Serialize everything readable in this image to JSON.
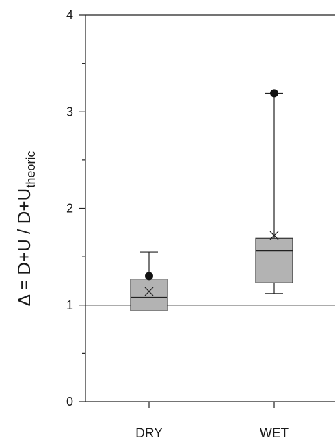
{
  "chart_data": {
    "type": "box",
    "categories": [
      "DRY",
      "WET"
    ],
    "ylabel": {
      "main": "Δ = D+U / D+U",
      "subscript": "theoric"
    },
    "xlabel": "",
    "ylim": [
      0,
      4
    ],
    "yticks": [
      0,
      1,
      2,
      3,
      4
    ],
    "minor_yticks": [
      0.5,
      1.5,
      2.5,
      3.5
    ],
    "reference_line": 1,
    "boxes": [
      {
        "category": "DRY",
        "whisker_low": 0.94,
        "q1": 0.94,
        "median": 1.08,
        "q3": 1.27,
        "whisker_high": 1.55,
        "mean": 1.14,
        "outliers": [
          1.3
        ]
      },
      {
        "category": "WET",
        "whisker_low": 1.12,
        "q1": 1.23,
        "median": 1.56,
        "q3": 1.69,
        "whisker_high": 3.19,
        "mean": 1.72,
        "outliers": [
          3.19
        ]
      }
    ],
    "colors": {
      "box_fill": "#b3b3b3",
      "box_stroke": "#333333",
      "line": "#222222",
      "outlier": "#111111"
    }
  }
}
